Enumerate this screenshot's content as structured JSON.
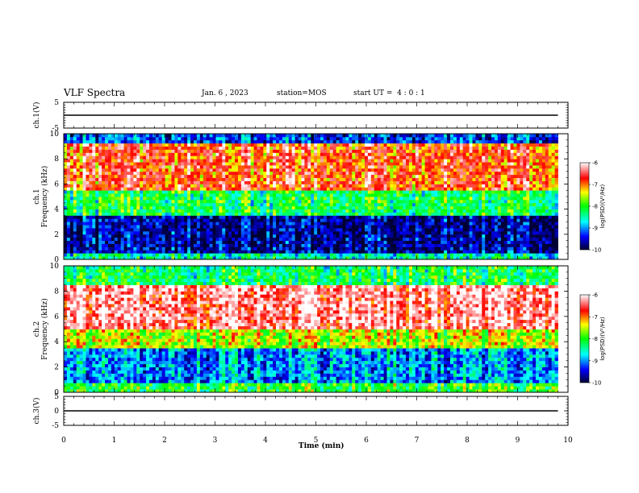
{
  "header": {
    "title": "VLF Spectra",
    "date": "Jan. 6 , 2023",
    "station": "station=MOS",
    "start_ut": "start UT =  4 : 0 : 1"
  },
  "chart_data": [
    {
      "type": "line",
      "panel": "ch1-waveform",
      "ylabel": "ch.1(V)",
      "ylim": [
        -5,
        5
      ],
      "yticks": [
        "5",
        "-5"
      ],
      "xlim": [
        0,
        10
      ],
      "series": [
        {
          "x": [
            0,
            9.8
          ],
          "values": [
            0,
            0
          ]
        }
      ]
    },
    {
      "type": "heatmap",
      "panel": "ch1-spectrogram",
      "ylabel": "ch.1\nFrequency (kHz)",
      "xlim": [
        0,
        10
      ],
      "ylim": [
        0,
        10
      ],
      "yticks": [
        "0",
        "2",
        "4",
        "6",
        "8",
        "10"
      ],
      "colorbar": {
        "label": "log(PSD)(V²/Hz)",
        "range": [
          -10,
          -6
        ],
        "ticks": [
          "-6",
          "-7",
          "-8",
          "-9",
          "-10"
        ]
      },
      "description_bands_khz": [
        {
          "from": 0,
          "to": 0.5,
          "level": -8.5
        },
        {
          "from": 0.5,
          "to": 3.5,
          "level": -9.7
        },
        {
          "from": 3.5,
          "to": 5.5,
          "level": -8.2
        },
        {
          "from": 5.5,
          "to": 9.2,
          "level": -6.8
        },
        {
          "from": 9.2,
          "to": 10,
          "level": -9.3
        }
      ]
    },
    {
      "type": "heatmap",
      "panel": "ch2-spectrogram",
      "ylabel": "ch.2\nFrequency (kHz)",
      "xlim": [
        0,
        10
      ],
      "ylim": [
        0,
        10
      ],
      "yticks": [
        "0",
        "2",
        "4",
        "6",
        "8",
        "10"
      ],
      "colorbar": {
        "label": "log(PSD)(V²/Hz)",
        "range": [
          -10,
          -6
        ],
        "ticks": [
          "-6",
          "-7",
          "-8",
          "-9",
          "-10"
        ]
      },
      "description_bands_khz": [
        {
          "from": 0,
          "to": 0.8,
          "level": -8.0
        },
        {
          "from": 0.8,
          "to": 3.5,
          "level": -9.0
        },
        {
          "from": 3.5,
          "to": 5.0,
          "level": -7.5
        },
        {
          "from": 5.0,
          "to": 8.5,
          "level": -6.3
        },
        {
          "from": 8.5,
          "to": 10,
          "level": -8.2
        }
      ]
    },
    {
      "type": "line",
      "panel": "ch3-waveform",
      "ylabel": "ch.3(V)",
      "ylim": [
        -5,
        5
      ],
      "yticks": [
        "5",
        "0",
        "-5"
      ],
      "xlim": [
        0,
        10
      ],
      "series": [
        {
          "x": [
            0,
            9.8
          ],
          "values": [
            0,
            0
          ]
        }
      ]
    }
  ],
  "xaxis": {
    "label": "Time (min)",
    "ticks": [
      "0",
      "1",
      "2",
      "3",
      "4",
      "5",
      "6",
      "7",
      "8",
      "9",
      "10"
    ]
  },
  "colors": {
    "colormap": [
      "#000033",
      "#0000ff",
      "#00ffff",
      "#00ff00",
      "#ffff00",
      "#ff0000",
      "#ffffff"
    ]
  }
}
